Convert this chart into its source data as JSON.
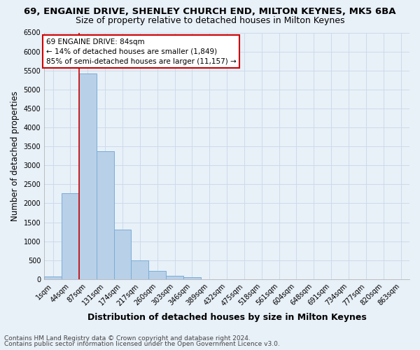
{
  "title_line1": "69, ENGAINE DRIVE, SHENLEY CHURCH END, MILTON KEYNES, MK5 6BA",
  "title_line2": "Size of property relative to detached houses in Milton Keynes",
  "xlabel": "Distribution of detached houses by size in Milton Keynes",
  "ylabel": "Number of detached properties",
  "footer_line1": "Contains HM Land Registry data © Crown copyright and database right 2024.",
  "footer_line2": "Contains public sector information licensed under the Open Government Licence v3.0.",
  "bin_labels": [
    "1sqm",
    "44sqm",
    "87sqm",
    "131sqm",
    "174sqm",
    "217sqm",
    "260sqm",
    "303sqm",
    "346sqm",
    "389sqm",
    "432sqm",
    "475sqm",
    "518sqm",
    "561sqm",
    "604sqm",
    "648sqm",
    "691sqm",
    "734sqm",
    "777sqm",
    "820sqm",
    "863sqm"
  ],
  "bar_values": [
    75,
    2270,
    5420,
    3380,
    1310,
    490,
    210,
    90,
    60,
    0,
    0,
    0,
    0,
    0,
    0,
    0,
    0,
    0,
    0,
    0,
    0
  ],
  "bar_color": "#b8d0e8",
  "bar_edge_color": "#7aaed6",
  "annotation_text": "69 ENGAINE DRIVE: 84sqm\n← 14% of detached houses are smaller (1,849)\n85% of semi-detached houses are larger (11,157) →",
  "annotation_box_color": "white",
  "annotation_box_edge_color": "#cc0000",
  "vline_color": "#cc0000",
  "vline_x": 1.5,
  "ylim": [
    0,
    6500
  ],
  "yticks": [
    0,
    500,
    1000,
    1500,
    2000,
    2500,
    3000,
    3500,
    4000,
    4500,
    5000,
    5500,
    6000,
    6500
  ],
  "grid_color": "#c8d8e8",
  "background_color": "#e8f0f8",
  "title1_fontsize": 9.5,
  "title2_fontsize": 9,
  "xlabel_fontsize": 9,
  "ylabel_fontsize": 8.5,
  "tick_fontsize": 7,
  "annotation_fontsize": 7.5,
  "footer_fontsize": 6.5
}
